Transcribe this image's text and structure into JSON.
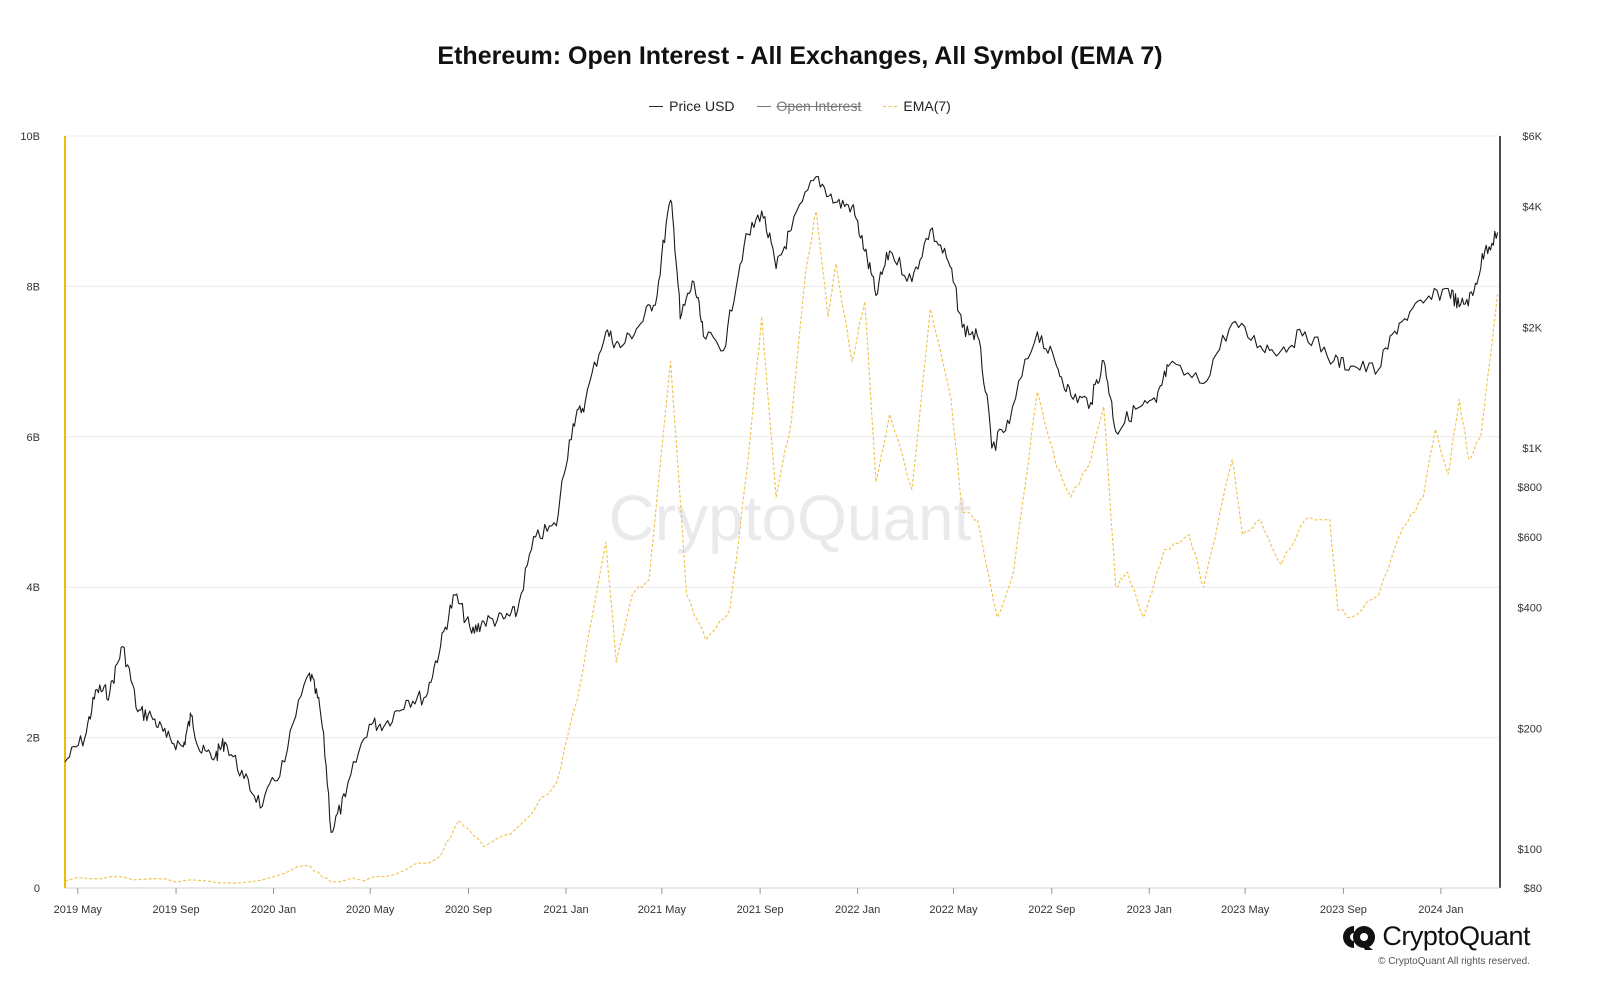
{
  "chart_data": {
    "type": "line",
    "title": "Ethereum: Open Interest - All Exchanges, All Symbol (EMA 7)",
    "legend": [
      {
        "name": "Price USD",
        "color": "#222222",
        "style": "solid",
        "hidden": false
      },
      {
        "name": "Open Interest",
        "color": "#555555",
        "style": "solid",
        "hidden": true
      },
      {
        "name": "EMA(7)",
        "color": "#f0c14b",
        "style": "dashed",
        "hidden": false
      }
    ],
    "legend_placement": "top-center",
    "grid": true,
    "x_axis": {
      "type": "date",
      "ticks": [
        "2019 May",
        "2019 Sep",
        "2020 Jan",
        "2020 May",
        "2020 Sep",
        "2021 Jan",
        "2021 May",
        "2021 Sep",
        "2022 Jan",
        "2022 May",
        "2022 Sep",
        "2023 Jan",
        "2023 May",
        "2023 Sep",
        "2024 Jan"
      ],
      "range": [
        "2019-04-15",
        "2024-03-15"
      ]
    },
    "y_left": {
      "label": "",
      "ticks": [
        "0",
        "2B",
        "4B",
        "6B",
        "8B",
        "10B"
      ],
      "range": [
        0,
        10000000000
      ],
      "color": "#f0b90b"
    },
    "y_right": {
      "label": "",
      "scale": "log",
      "ticks": [
        {
          "label": "$80",
          "value": 80
        },
        {
          "label": "$100",
          "value": 100
        },
        {
          "label": "$200",
          "value": 200
        },
        {
          "label": "$400",
          "value": 400
        },
        {
          "label": "$600",
          "value": 600
        },
        {
          "label": "$800",
          "value": 800
        },
        {
          "label": "$1K",
          "value": 1000
        },
        {
          "label": "$2K",
          "value": 2000
        },
        {
          "label": "$4K",
          "value": 4000
        },
        {
          "label": "$6K",
          "value": 6000
        }
      ],
      "range": [
        80,
        6000
      ]
    },
    "series": [
      {
        "name": "Price USD",
        "axis": "right",
        "points": [
          [
            "2019-04-15",
            165
          ],
          [
            "2019-05-10",
            190
          ],
          [
            "2019-05-25",
            250
          ],
          [
            "2019-06-10",
            245
          ],
          [
            "2019-06-26",
            320
          ],
          [
            "2019-07-15",
            220
          ],
          [
            "2019-08-01",
            215
          ],
          [
            "2019-08-20",
            190
          ],
          [
            "2019-09-10",
            180
          ],
          [
            "2019-09-20",
            215
          ],
          [
            "2019-10-01",
            175
          ],
          [
            "2019-10-20",
            170
          ],
          [
            "2019-11-01",
            185
          ],
          [
            "2019-11-25",
            150
          ],
          [
            "2019-12-18",
            128
          ],
          [
            "2020-01-15",
            165
          ],
          [
            "2020-02-15",
            275
          ],
          [
            "2020-02-28",
            225
          ],
          [
            "2020-03-13",
            110
          ],
          [
            "2020-03-31",
            135
          ],
          [
            "2020-04-30",
            205
          ],
          [
            "2020-05-20",
            205
          ],
          [
            "2020-06-15",
            235
          ],
          [
            "2020-07-10",
            240
          ],
          [
            "2020-07-28",
            320
          ],
          [
            "2020-08-15",
            430
          ],
          [
            "2020-09-05",
            345
          ],
          [
            "2020-09-20",
            370
          ],
          [
            "2020-10-15",
            375
          ],
          [
            "2020-11-01",
            390
          ],
          [
            "2020-11-24",
            600
          ],
          [
            "2020-12-20",
            640
          ],
          [
            "2021-01-10",
            1150
          ],
          [
            "2021-01-25",
            1300
          ],
          [
            "2021-02-20",
            1950
          ],
          [
            "2021-03-10",
            1780
          ],
          [
            "2021-04-05",
            2050
          ],
          [
            "2021-04-25",
            2400
          ],
          [
            "2021-05-12",
            4150
          ],
          [
            "2021-05-24",
            2100
          ],
          [
            "2021-06-10",
            2600
          ],
          [
            "2021-06-22",
            1900
          ],
          [
            "2021-07-20",
            1800
          ],
          [
            "2021-08-12",
            3200
          ],
          [
            "2021-09-03",
            3900
          ],
          [
            "2021-09-21",
            2800
          ],
          [
            "2021-10-10",
            3500
          ],
          [
            "2021-11-10",
            4750
          ],
          [
            "2021-12-04",
            4100
          ],
          [
            "2021-12-25",
            4000
          ],
          [
            "2022-01-10",
            3100
          ],
          [
            "2022-01-24",
            2400
          ],
          [
            "2022-02-10",
            3100
          ],
          [
            "2022-03-10",
            2600
          ],
          [
            "2022-04-02",
            3500
          ],
          [
            "2022-04-25",
            2900
          ],
          [
            "2022-05-12",
            2000
          ],
          [
            "2022-05-31",
            1900
          ],
          [
            "2022-06-18",
            1000
          ],
          [
            "2022-07-10",
            1150
          ],
          [
            "2022-08-14",
            1950
          ],
          [
            "2022-09-07",
            1600
          ],
          [
            "2022-09-25",
            1350
          ],
          [
            "2022-10-20",
            1300
          ],
          [
            "2022-11-05",
            1650
          ],
          [
            "2022-11-20",
            1100
          ],
          [
            "2022-12-15",
            1250
          ],
          [
            "2023-01-10",
            1300
          ],
          [
            "2023-01-25",
            1600
          ],
          [
            "2023-03-10",
            1450
          ],
          [
            "2023-04-15",
            2050
          ],
          [
            "2023-05-20",
            1800
          ],
          [
            "2023-06-15",
            1750
          ],
          [
            "2023-07-15",
            1950
          ],
          [
            "2023-08-20",
            1650
          ],
          [
            "2023-09-10",
            1600
          ],
          [
            "2023-10-15",
            1570
          ],
          [
            "2023-11-10",
            2050
          ],
          [
            "2023-12-10",
            2300
          ],
          [
            "2024-01-10",
            2500
          ],
          [
            "2024-01-24",
            2250
          ],
          [
            "2024-02-10",
            2400
          ],
          [
            "2024-02-25",
            3100
          ],
          [
            "2024-03-12",
            3450
          ]
        ]
      },
      {
        "name": "EMA(7)",
        "axis": "left",
        "points": [
          [
            "2019-04-15",
            90000000
          ],
          [
            "2019-06-26",
            150000000
          ],
          [
            "2019-09-01",
            80000000
          ],
          [
            "2019-12-01",
            80000000
          ],
          [
            "2020-02-15",
            300000000
          ],
          [
            "2020-03-13",
            80000000
          ],
          [
            "2020-05-20",
            150000000
          ],
          [
            "2020-07-25",
            400000000
          ],
          [
            "2020-08-20",
            900000000
          ],
          [
            "2020-09-20",
            550000000
          ],
          [
            "2020-11-01",
            800000000
          ],
          [
            "2020-12-20",
            1400000000
          ],
          [
            "2021-01-15",
            2500000000
          ],
          [
            "2021-02-20",
            4600000000
          ],
          [
            "2021-03-05",
            3000000000
          ],
          [
            "2021-03-25",
            3900000000
          ],
          [
            "2021-04-15",
            4100000000
          ],
          [
            "2021-04-25",
            5200000000
          ],
          [
            "2021-05-12",
            7000000000
          ],
          [
            "2021-06-01",
            3900000000
          ],
          [
            "2021-06-25",
            3300000000
          ],
          [
            "2021-07-25",
            3700000000
          ],
          [
            "2021-08-15",
            5500000000
          ],
          [
            "2021-09-03",
            7600000000
          ],
          [
            "2021-09-21",
            5200000000
          ],
          [
            "2021-10-10",
            6200000000
          ],
          [
            "2021-10-28",
            8200000000
          ],
          [
            "2021-11-10",
            9000000000
          ],
          [
            "2021-11-25",
            7600000000
          ],
          [
            "2021-12-05",
            8300000000
          ],
          [
            "2021-12-25",
            7000000000
          ],
          [
            "2022-01-10",
            7800000000
          ],
          [
            "2022-01-24",
            5400000000
          ],
          [
            "2022-02-10",
            6300000000
          ],
          [
            "2022-03-10",
            5300000000
          ],
          [
            "2022-04-02",
            7700000000
          ],
          [
            "2022-04-28",
            6500000000
          ],
          [
            "2022-05-12",
            5000000000
          ],
          [
            "2022-05-31",
            4900000000
          ],
          [
            "2022-06-25",
            3600000000
          ],
          [
            "2022-07-15",
            4200000000
          ],
          [
            "2022-08-14",
            6600000000
          ],
          [
            "2022-09-07",
            5600000000
          ],
          [
            "2022-09-25",
            5200000000
          ],
          [
            "2022-10-20",
            5700000000
          ],
          [
            "2022-11-05",
            6400000000
          ],
          [
            "2022-11-20",
            4000000000
          ],
          [
            "2022-12-05",
            4200000000
          ],
          [
            "2022-12-25",
            3600000000
          ],
          [
            "2023-01-20",
            4500000000
          ],
          [
            "2023-02-20",
            4700000000
          ],
          [
            "2023-03-10",
            4000000000
          ],
          [
            "2023-04-15",
            5700000000
          ],
          [
            "2023-04-28",
            4700000000
          ],
          [
            "2023-05-20",
            4900000000
          ],
          [
            "2023-06-15",
            4300000000
          ],
          [
            "2023-07-15",
            4900000000
          ],
          [
            "2023-08-15",
            4900000000
          ],
          [
            "2023-08-25",
            3700000000
          ],
          [
            "2023-09-10",
            3600000000
          ],
          [
            "2023-10-15",
            3900000000
          ],
          [
            "2023-11-15",
            4800000000
          ],
          [
            "2023-12-10",
            5200000000
          ],
          [
            "2023-12-25",
            6100000000
          ],
          [
            "2024-01-10",
            5500000000
          ],
          [
            "2024-01-24",
            6500000000
          ],
          [
            "2024-02-05",
            5700000000
          ],
          [
            "2024-02-20",
            6000000000
          ],
          [
            "2024-03-12",
            7900000000
          ]
        ]
      }
    ],
    "watermark": "CryptoQuant"
  },
  "footer": {
    "brand": "CryptoQuant",
    "copyright": "© CryptoQuant All rights reserved."
  }
}
